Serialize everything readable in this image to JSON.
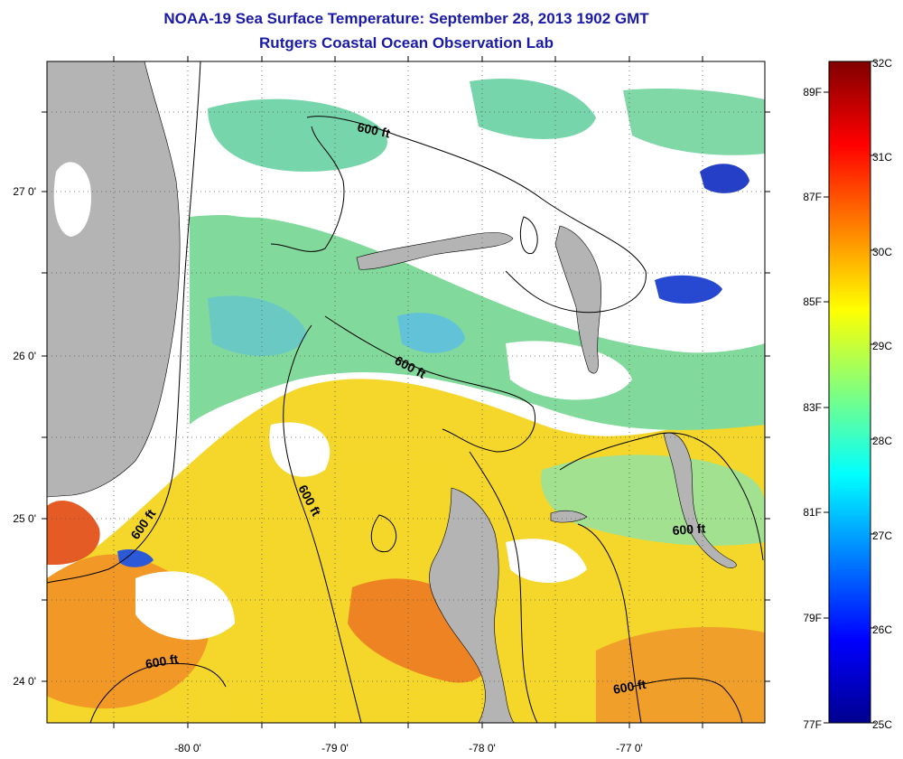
{
  "header": {
    "title": "NOAA-19 Sea Surface Temperature:  September 28, 2013 1902 GMT",
    "subtitle": "Rutgers Coastal Ocean Observation Lab"
  },
  "map": {
    "lon_ticks": [
      "-80 0'",
      "-79 0'",
      "-78 0'",
      "-77 0'"
    ],
    "lat_ticks": [
      "27 0'",
      "26 0'",
      "25 0'",
      "24 0'"
    ],
    "contour_labels": [
      "600 ft",
      "600 ft",
      "600 ft",
      "600 ft",
      "600 ft",
      "600 ft"
    ],
    "colors": {
      "land": "#b4b4b4",
      "cloud": "#ffffff",
      "water_cool": "#6fd6a0",
      "water_warm": "#f3d21d",
      "water_hot": "#f08a1a",
      "water_cold": "#1740c8"
    }
  },
  "colorbar": {
    "celsius_labels": [
      "32C",
      "31C",
      "30C",
      "29C",
      "28C",
      "27C",
      "26C",
      "25C"
    ],
    "fahrenheit_labels": [
      "89F",
      "87F",
      "85F",
      "83F",
      "81F",
      "79F",
      "77F"
    ],
    "range_c": [
      25,
      32
    ],
    "colormap": "jet"
  }
}
